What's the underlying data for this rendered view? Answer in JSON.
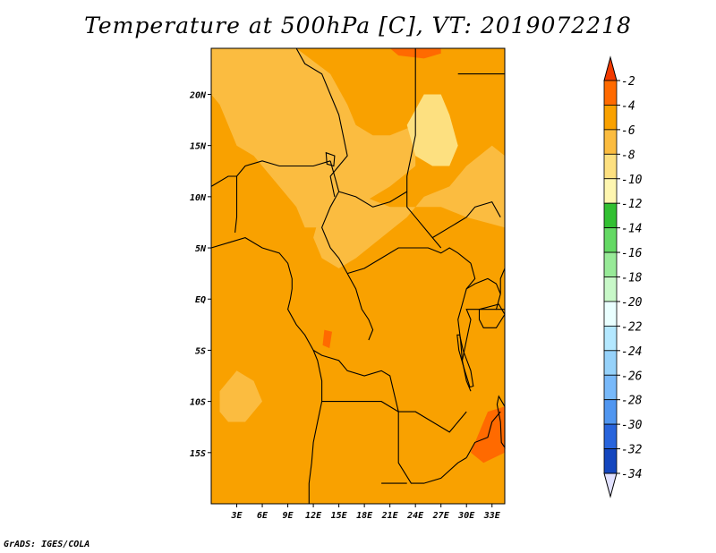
{
  "title": "Temperature at 500hPa [C], VT: 2019072218",
  "footer": "GrADS: IGES/COLA",
  "map": {
    "lon_range": [
      0,
      34.5
    ],
    "lat_range": [
      -20,
      24.5
    ],
    "lon_ticks": [
      {
        "value": 3,
        "label": "3E"
      },
      {
        "value": 6,
        "label": "6E"
      },
      {
        "value": 9,
        "label": "9E"
      },
      {
        "value": 12,
        "label": "12E"
      },
      {
        "value": 15,
        "label": "15E"
      },
      {
        "value": 18,
        "label": "18E"
      },
      {
        "value": 21,
        "label": "21E"
      },
      {
        "value": 24,
        "label": "24E"
      },
      {
        "value": 27,
        "label": "27E"
      },
      {
        "value": 30,
        "label": "30E"
      },
      {
        "value": 33,
        "label": "33E"
      }
    ],
    "lat_ticks": [
      {
        "value": 20,
        "label": "20N"
      },
      {
        "value": 15,
        "label": "15N"
      },
      {
        "value": 10,
        "label": "10N"
      },
      {
        "value": 5,
        "label": "5N"
      },
      {
        "value": 0,
        "label": "EQ"
      },
      {
        "value": -5,
        "label": "5S"
      },
      {
        "value": -10,
        "label": "10S"
      },
      {
        "value": -15,
        "label": "15S"
      }
    ],
    "base_color": "#f9a100",
    "field_regions": [
      {
        "name": "warm-band-northeast",
        "color": "#ff6a00"
      },
      {
        "name": "warm-patch-congo",
        "color": "#ff6a00"
      },
      {
        "name": "warm-patch-east",
        "color": "#ff6a00"
      },
      {
        "name": "cool-sahel",
        "color": "#fbbc40"
      },
      {
        "name": "cool-central",
        "color": "#fbbc40"
      },
      {
        "name": "cool-atlantic",
        "color": "#fbbc40"
      },
      {
        "name": "coolest-sudan",
        "color": "#fde080"
      }
    ]
  },
  "colorbar": {
    "levels": [
      "-2",
      "-4",
      "-6",
      "-8",
      "-10",
      "-12",
      "-14",
      "-16",
      "-18",
      "-20",
      "-22",
      "-24",
      "-26",
      "-28",
      "-30",
      "-32",
      "-34"
    ],
    "colors": [
      "#f23a00",
      "#ff6a00",
      "#f9a100",
      "#fbbc40",
      "#fde080",
      "#fef6b0",
      "#32c032",
      "#64d964",
      "#98ea98",
      "#c8f8c8",
      "#eaffff",
      "#b4e8ff",
      "#96d2fa",
      "#78b9fa",
      "#5096f0",
      "#2864dc",
      "#1446be",
      "#0a1e78"
    ],
    "top_triangle_color": "#f23a00",
    "bottom_triangle_color": "#e1e1ff"
  }
}
